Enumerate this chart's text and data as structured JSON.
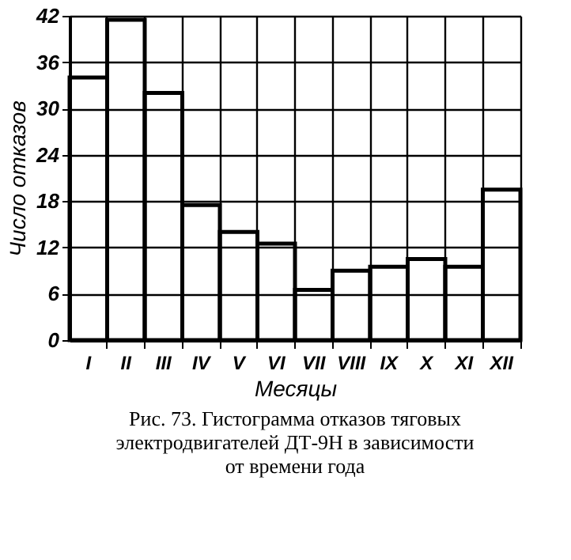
{
  "chart_data": {
    "type": "bar",
    "categories": [
      "I",
      "II",
      "III",
      "IV",
      "V",
      "VI",
      "VII",
      "VIII",
      "IX",
      "X",
      "XI",
      "XII"
    ],
    "values": [
      34,
      41.5,
      32,
      17.5,
      14,
      12.5,
      6.5,
      9,
      9.5,
      10.5,
      9.5,
      19.5
    ],
    "color": "#000000",
    "xlabel": "Месяцы",
    "ylabel": "Число отказов",
    "ylim": [
      0,
      42
    ],
    "yticks": [
      0,
      6,
      12,
      18,
      24,
      30,
      36,
      42
    ],
    "grid": true,
    "annotations": [
      "Рис. 73. Гистограмма отказов тяговых электродвигателей ДТ-9Н в зависимости от времени года"
    ]
  }
}
